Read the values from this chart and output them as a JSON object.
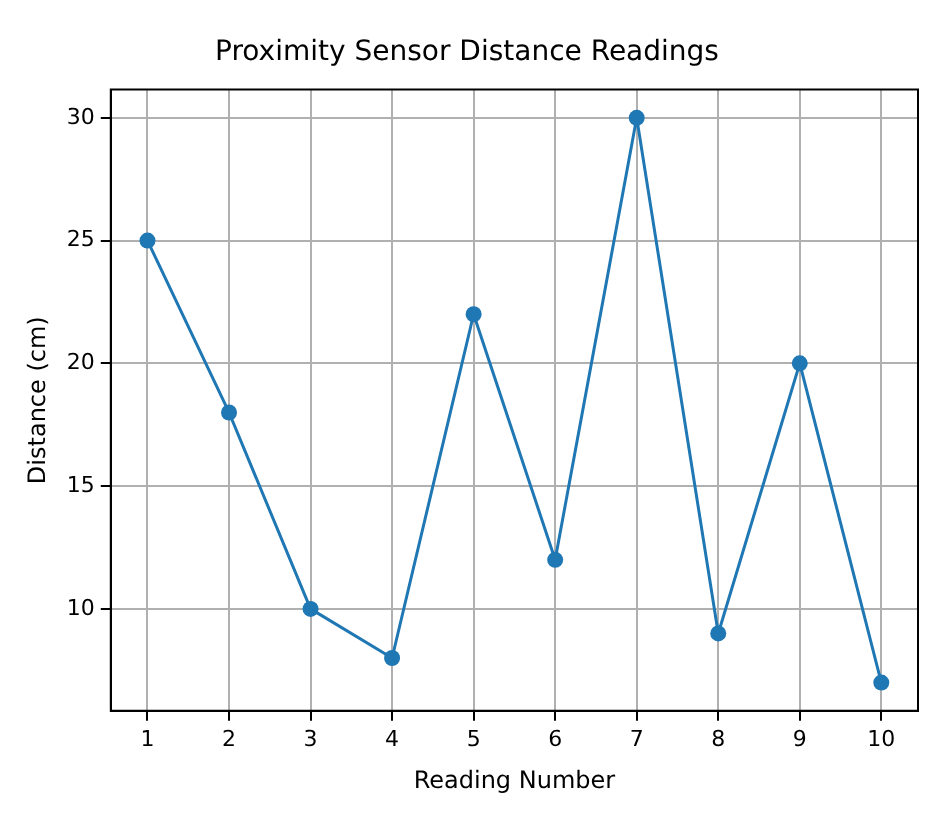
{
  "chart_data": {
    "type": "line",
    "title": "Proximity Sensor Distance Readings",
    "xlabel": "Reading Number",
    "ylabel": "Distance (cm)",
    "x": [
      1,
      2,
      3,
      4,
      5,
      6,
      7,
      8,
      9,
      10
    ],
    "series": [
      {
        "color": "#1f77b4",
        "values": [
          25,
          18,
          10,
          8,
          22,
          12,
          30,
          9,
          20,
          7
        ]
      }
    ],
    "xlim": [
      0.55,
      10.45
    ],
    "xticks": [
      1,
      2,
      3,
      4,
      5,
      6,
      7,
      8,
      9,
      10
    ],
    "ylim": [
      5.85,
      31.15
    ],
    "yticks": [
      10,
      15,
      20,
      25,
      30
    ],
    "grid": true,
    "marker": "circle",
    "line_style": "solid",
    "legend": false
  }
}
